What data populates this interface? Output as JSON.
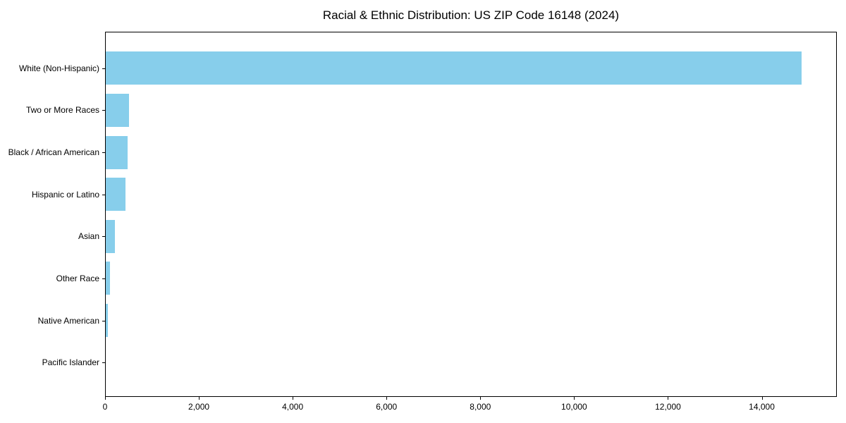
{
  "title": "Racial & Ethnic Distribution: US ZIP Code 16148 (2024)",
  "chart_data": {
    "type": "bar",
    "orientation": "horizontal",
    "title": "Racial & Ethnic Distribution: US ZIP Code 16148 (2024)",
    "categories": [
      "White (Non-Hispanic)",
      "Two or More Races",
      "Black / African American",
      "Hispanic or Latino",
      "Asian",
      "Other Race",
      "Native American",
      "Pacific Islander"
    ],
    "values": [
      14860,
      500,
      465,
      425,
      190,
      90,
      45,
      0
    ],
    "xlabel": "",
    "ylabel": "",
    "xlim": [
      0,
      15600
    ],
    "xticks": [
      0,
      2000,
      4000,
      6000,
      8000,
      10000,
      12000,
      14000
    ],
    "xtick_labels": [
      "0",
      "2,000",
      "4,000",
      "6,000",
      "8,000",
      "10,000",
      "12,000",
      "14,000"
    ],
    "bar_color": "#87CEEB",
    "text_color": "#000000",
    "grid": false,
    "legend": null
  }
}
